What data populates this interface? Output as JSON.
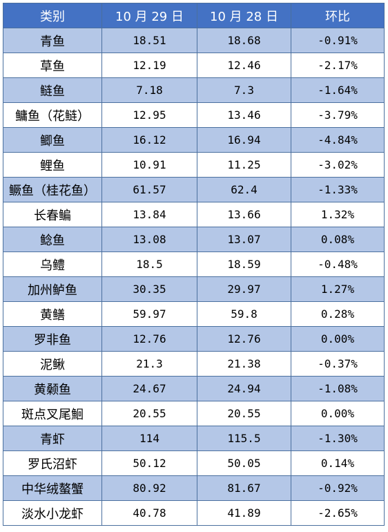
{
  "table": {
    "headers": [
      "类别",
      "10 月 29 日",
      "10 月 28 日",
      "环比"
    ],
    "rows": [
      {
        "name": "青鱼",
        "d29": "18.51",
        "d28": "18.68",
        "change": "-0.91%"
      },
      {
        "name": "草鱼",
        "d29": "12.19",
        "d28": "12.46",
        "change": "-2.17%"
      },
      {
        "name": "鲢鱼",
        "d29": "7.18",
        "d28": "7.3",
        "change": "-1.64%"
      },
      {
        "name": "鳙鱼（花鲢）",
        "d29": "12.95",
        "d28": "13.46",
        "change": "-3.79%"
      },
      {
        "name": "鲫鱼",
        "d29": "16.12",
        "d28": "16.94",
        "change": "-4.84%"
      },
      {
        "name": "鲤鱼",
        "d29": "10.91",
        "d28": "11.25",
        "change": "-3.02%"
      },
      {
        "name": "鳜鱼（桂花鱼）",
        "d29": "61.57",
        "d28": "62.4",
        "change": "-1.33%"
      },
      {
        "name": "长春鳊",
        "d29": "13.84",
        "d28": "13.66",
        "change": "1.32%"
      },
      {
        "name": "鲶鱼",
        "d29": "13.08",
        "d28": "13.07",
        "change": "0.08%"
      },
      {
        "name": "乌鳢",
        "d29": "18.5",
        "d28": "18.59",
        "change": "-0.48%"
      },
      {
        "name": "加州鲈鱼",
        "d29": "30.35",
        "d28": "29.97",
        "change": "1.27%"
      },
      {
        "name": "黄鳝",
        "d29": "59.97",
        "d28": "59.8",
        "change": "0.28%"
      },
      {
        "name": "罗非鱼",
        "d29": "12.76",
        "d28": "12.76",
        "change": "0.00%"
      },
      {
        "name": "泥鳅",
        "d29": "21.3",
        "d28": "21.38",
        "change": "-0.37%"
      },
      {
        "name": "黄颡鱼",
        "d29": "24.67",
        "d28": "24.94",
        "change": "-1.08%"
      },
      {
        "name": "斑点叉尾鮰",
        "d29": "20.55",
        "d28": "20.55",
        "change": "0.00%"
      },
      {
        "name": "青虾",
        "d29": "114",
        "d28": "115.5",
        "change": "-1.30%"
      },
      {
        "name": "罗氏沼虾",
        "d29": "50.12",
        "d28": "50.05",
        "change": "0.14%"
      },
      {
        "name": "中华绒螯蟹",
        "d29": "80.92",
        "d28": "81.67",
        "change": "-0.92%"
      },
      {
        "name": "淡水小龙虾",
        "d29": "40.78",
        "d28": "41.89",
        "change": "-2.65%"
      }
    ]
  }
}
